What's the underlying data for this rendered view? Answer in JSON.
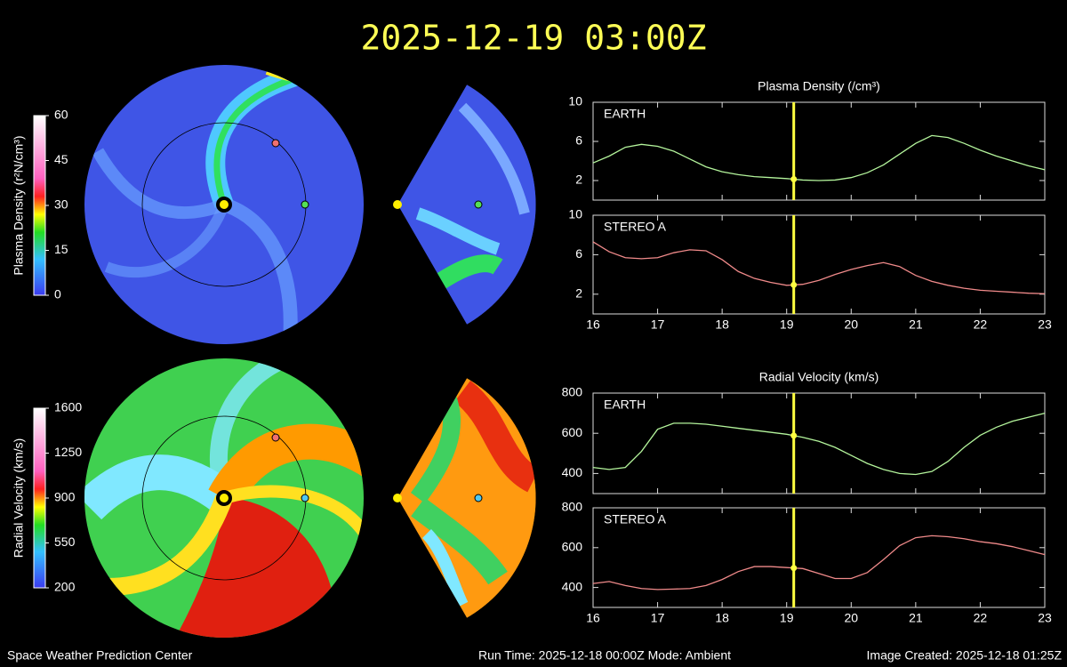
{
  "title": "2025-12-19 03:00Z",
  "footer": {
    "left": "Space Weather Prediction Center",
    "center": "Run Time: 2025-12-18 00:00Z  Mode: Ambient",
    "right": "Image Created: 2025-12-18 01:25Z"
  },
  "chart_data": [
    {
      "type": "line",
      "title": "Plasma Density (/cm³)",
      "cursor_x": 19.11,
      "x": [
        16,
        16.25,
        16.5,
        16.75,
        17,
        17.25,
        17.5,
        17.75,
        18,
        18.25,
        18.5,
        18.75,
        19,
        19.25,
        19.5,
        19.75,
        20,
        20.25,
        20.5,
        20.75,
        21,
        21.25,
        21.5,
        21.75,
        22,
        22.25,
        22.5,
        22.75,
        23
      ],
      "series": [
        {
          "name": "EARTH",
          "color": "#b4f59c",
          "values": [
            3.8,
            4.5,
            5.4,
            5.7,
            5.5,
            5.0,
            4.2,
            3.4,
            2.9,
            2.6,
            2.4,
            2.3,
            2.2,
            2.05,
            2.0,
            2.05,
            2.3,
            2.8,
            3.6,
            4.7,
            5.8,
            6.6,
            6.4,
            5.8,
            5.1,
            4.5,
            4.0,
            3.5,
            3.1
          ]
        }
      ],
      "xlim": [
        16,
        23
      ],
      "xticks": [
        16,
        17,
        18,
        19,
        20,
        21,
        22,
        23
      ],
      "ylim": [
        0,
        10
      ],
      "yticks": [
        2,
        6,
        10
      ]
    },
    {
      "type": "line",
      "cursor_x": 19.11,
      "x": [
        16,
        16.25,
        16.5,
        16.75,
        17,
        17.25,
        17.5,
        17.75,
        18,
        18.25,
        18.5,
        18.75,
        19,
        19.25,
        19.5,
        19.75,
        20,
        20.25,
        20.5,
        20.75,
        21,
        21.25,
        21.5,
        21.75,
        22,
        22.25,
        22.5,
        22.75,
        23
      ],
      "series": [
        {
          "name": "STEREO A",
          "color": "#f08a8a",
          "values": [
            7.3,
            6.3,
            5.7,
            5.6,
            5.7,
            6.2,
            6.5,
            6.4,
            5.5,
            4.3,
            3.6,
            3.2,
            2.9,
            3.0,
            3.4,
            4.0,
            4.5,
            4.9,
            5.2,
            4.8,
            3.9,
            3.3,
            2.9,
            2.6,
            2.4,
            2.3,
            2.2,
            2.1,
            2.05
          ]
        }
      ],
      "xlim": [
        16,
        23
      ],
      "xticks": [
        16,
        17,
        18,
        19,
        20,
        21,
        22,
        23
      ],
      "ylim": [
        0,
        10
      ],
      "yticks": [
        2,
        6,
        10
      ]
    },
    {
      "type": "line",
      "title": "Radial Velocity (km/s)",
      "cursor_x": 19.11,
      "x": [
        16,
        16.25,
        16.5,
        16.75,
        17,
        17.25,
        17.5,
        17.75,
        18,
        18.25,
        18.5,
        18.75,
        19,
        19.25,
        19.5,
        19.75,
        20,
        20.25,
        20.5,
        20.75,
        21,
        21.25,
        21.5,
        21.75,
        22,
        22.25,
        22.5,
        22.75,
        23
      ],
      "series": [
        {
          "name": "EARTH",
          "color": "#b4f59c",
          "values": [
            430,
            420,
            430,
            510,
            620,
            650,
            650,
            645,
            635,
            625,
            615,
            605,
            595,
            580,
            560,
            530,
            490,
            450,
            420,
            400,
            395,
            410,
            460,
            530,
            590,
            630,
            660,
            680,
            700
          ]
        }
      ],
      "xlim": [
        16,
        23
      ],
      "xticks": [
        16,
        17,
        18,
        19,
        20,
        21,
        22,
        23
      ],
      "ylim": [
        300,
        800
      ],
      "yticks": [
        400,
        600,
        800
      ]
    },
    {
      "type": "line",
      "cursor_x": 19.11,
      "x": [
        16,
        16.25,
        16.5,
        16.75,
        17,
        17.25,
        17.5,
        17.75,
        18,
        18.25,
        18.5,
        18.75,
        19,
        19.25,
        19.5,
        19.75,
        20,
        20.25,
        20.5,
        20.75,
        21,
        21.25,
        21.5,
        21.75,
        22,
        22.25,
        22.5,
        22.75,
        23
      ],
      "series": [
        {
          "name": "STEREO A",
          "color": "#f08a8a",
          "values": [
            420,
            430,
            410,
            395,
            390,
            392,
            395,
            410,
            440,
            480,
            505,
            505,
            500,
            495,
            470,
            445,
            445,
            475,
            540,
            610,
            650,
            660,
            655,
            645,
            630,
            620,
            605,
            585,
            565
          ]
        }
      ],
      "xlim": [
        16,
        23
      ],
      "xticks": [
        16,
        17,
        18,
        19,
        20,
        21,
        22,
        23
      ],
      "ylim": [
        300,
        800
      ],
      "yticks": [
        400,
        600,
        800
      ]
    },
    {
      "type": "colorbar",
      "label": "Plasma Density (r²N/cm³)",
      "ylim": [
        0,
        60
      ],
      "yticks": [
        0,
        15,
        30,
        45,
        60
      ]
    },
    {
      "type": "colorbar",
      "label": "Radial Velocity (km/s)",
      "ylim": [
        200,
        1600
      ],
      "yticks": [
        200,
        550,
        900,
        1250,
        1600
      ]
    }
  ]
}
